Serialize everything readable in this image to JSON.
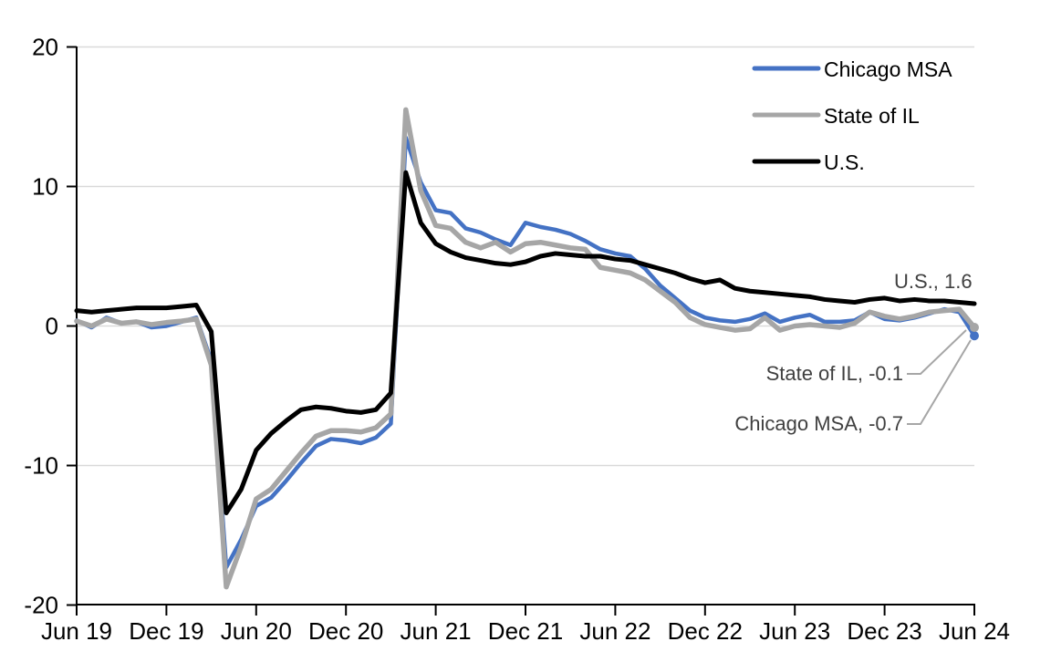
{
  "chart_data": {
    "type": "line",
    "title": "",
    "x_start": "Jun 2019",
    "x_end": "Jun 2024",
    "frequency": "monthly",
    "x_tick_labels": [
      "Jun 19",
      "Dec 19",
      "Jun 20",
      "Dec 20",
      "Jun 21",
      "Dec 21",
      "Jun 22",
      "Dec 22",
      "Jun 23",
      "Dec 23",
      "Jun 24"
    ],
    "y_ticks": [
      20,
      10,
      0,
      -10,
      -20
    ],
    "y_gridlines": [
      20,
      10,
      0,
      -10
    ],
    "ylim": [
      -20,
      20
    ],
    "grid": true,
    "legend_position": "top-right",
    "series": [
      {
        "name": "Chicago MSA",
        "color": "#4472C4",
        "stroke_width": 4.5,
        "end_marker": true,
        "values": [
          0.4,
          -0.1,
          0.6,
          0.2,
          0.3,
          -0.1,
          0.0,
          0.3,
          0.6,
          -2.5,
          -17.3,
          -15.3,
          -12.9,
          -12.3,
          -11.1,
          -9.8,
          -8.6,
          -8.1,
          -8.2,
          -8.4,
          -8.0,
          -7.0,
          13.5,
          10.3,
          8.3,
          8.1,
          7.0,
          6.7,
          6.2,
          5.8,
          7.4,
          7.1,
          6.9,
          6.6,
          6.1,
          5.5,
          5.2,
          5.0,
          4.1,
          2.9,
          2.0,
          1.1,
          0.6,
          0.4,
          0.3,
          0.5,
          0.9,
          0.3,
          0.6,
          0.8,
          0.3,
          0.3,
          0.4,
          1.0,
          0.5,
          0.4,
          0.6,
          0.9,
          1.2,
          1.0,
          -0.7
        ]
      },
      {
        "name": "State of IL",
        "color": "#A6A6A6",
        "stroke_width": 5.5,
        "end_marker": true,
        "values": [
          0.35,
          0.0,
          0.5,
          0.2,
          0.3,
          0.1,
          0.25,
          0.35,
          0.5,
          -2.8,
          -18.7,
          -15.8,
          -12.4,
          -11.7,
          -10.4,
          -9.1,
          -7.9,
          -7.5,
          -7.5,
          -7.6,
          -7.3,
          -6.3,
          15.5,
          9.7,
          7.2,
          7.0,
          6.0,
          5.6,
          6.0,
          5.3,
          5.9,
          6.0,
          5.8,
          5.6,
          5.5,
          4.2,
          4.0,
          3.8,
          3.3,
          2.5,
          1.7,
          0.6,
          0.1,
          -0.1,
          -0.3,
          -0.2,
          0.6,
          -0.3,
          0.0,
          0.1,
          0.0,
          -0.1,
          0.2,
          1.0,
          0.7,
          0.5,
          0.7,
          1.0,
          1.1,
          1.2,
          -0.1
        ]
      },
      {
        "name": "U.S.",
        "color": "#000000",
        "stroke_width": 5,
        "end_marker": false,
        "values": [
          1.1,
          1.0,
          1.1,
          1.2,
          1.3,
          1.3,
          1.3,
          1.4,
          1.5,
          -0.4,
          -13.4,
          -11.7,
          -8.9,
          -7.7,
          -6.8,
          -6.0,
          -5.8,
          -5.9,
          -6.1,
          -6.2,
          -6.0,
          -4.8,
          11.0,
          7.4,
          5.9,
          5.3,
          4.9,
          4.7,
          4.5,
          4.4,
          4.6,
          5.0,
          5.2,
          5.1,
          5.0,
          5.0,
          4.8,
          4.7,
          4.4,
          4.1,
          3.8,
          3.4,
          3.1,
          3.3,
          2.7,
          2.5,
          2.4,
          2.3,
          2.2,
          2.1,
          1.9,
          1.8,
          1.7,
          1.9,
          2.0,
          1.8,
          1.9,
          1.8,
          1.8,
          1.7,
          1.6
        ]
      }
    ]
  },
  "legend": {
    "items": [
      {
        "label": "Chicago MSA",
        "color": "#4472C4"
      },
      {
        "label": "State of IL",
        "color": "#A6A6A6"
      },
      {
        "label": "U.S.",
        "color": "#000000"
      }
    ]
  },
  "annotations": {
    "us": "U.S., 1.6",
    "il": "State of IL, -0.1",
    "chicago": "Chicago MSA, -0.7"
  },
  "colors": {
    "chicago_msa": "#4472C4",
    "state_of_il": "#A6A6A6",
    "us": "#000000",
    "gridline": "#D9D9D9",
    "annotation_text": "#404040",
    "leader_line": "#A6A6A6",
    "background": "#FFFFFF"
  }
}
